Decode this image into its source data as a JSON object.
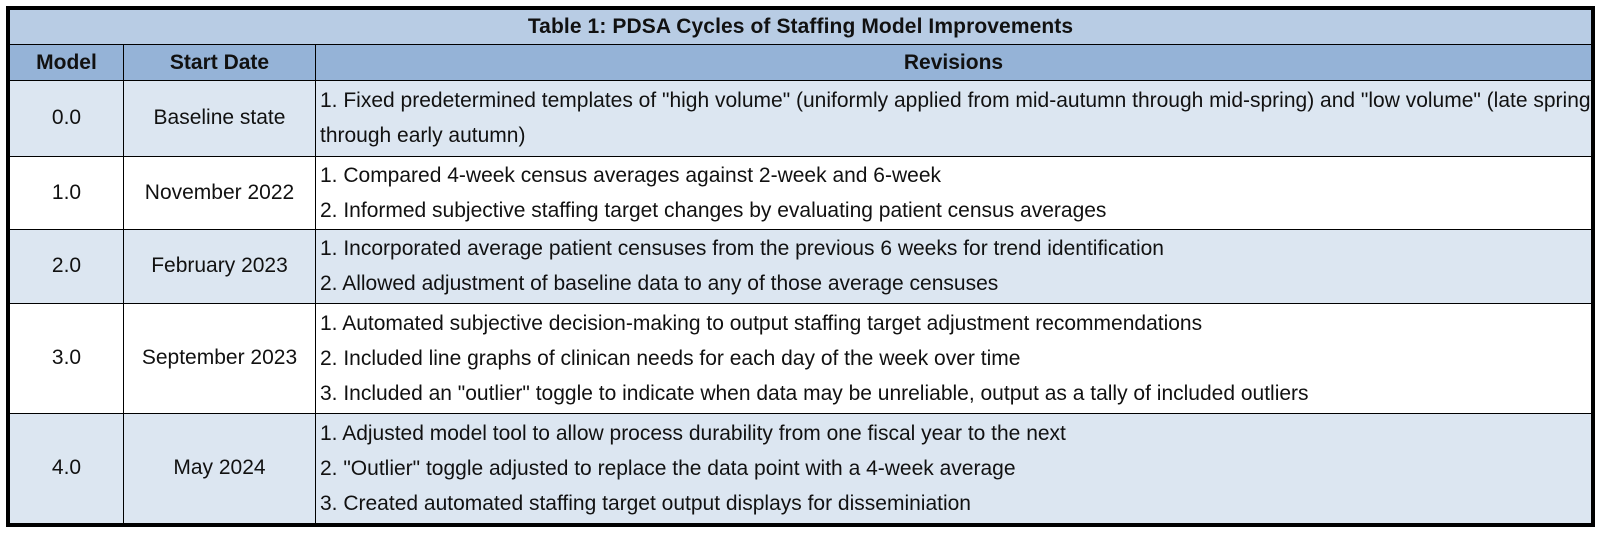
{
  "table": {
    "title": "Table 1: PDSA Cycles of Staffing Model Improvements",
    "headers": {
      "model": "Model",
      "start_date": "Start Date",
      "revisions": "Revisions"
    },
    "rows": [
      {
        "model": "0.0",
        "start_date": "Baseline state",
        "revisions": [
          "1. Fixed predetermined templates of \"high volume\" (uniformly applied from mid-autumn through mid-spring) and \"low volume\" (late spring through early autumn)"
        ]
      },
      {
        "model": "1.0",
        "start_date": "November 2022",
        "revisions": [
          "1. Compared 4-week census averages against 2-week and 6-week",
          "2. Informed subjective staffing target changes by evaluating patient census averages"
        ]
      },
      {
        "model": "2.0",
        "start_date": "February 2023",
        "revisions": [
          "1. Incorporated average patient censuses from the previous 6 weeks for trend identification",
          "2. Allowed adjustment of baseline data to any of those average censuses"
        ]
      },
      {
        "model": "3.0",
        "start_date": "September 2023",
        "revisions": [
          "1. Automated subjective decision-making to output staffing target adjustment recommendations",
          "2. Included line graphs of clinican needs for each day of the week over time",
          "3. Included an \"outlier\" toggle to indicate when data may be unreliable, output as a tally of included outliers"
        ]
      },
      {
        "model": "4.0",
        "start_date": "May 2024",
        "revisions": [
          "1. Adjusted model tool to allow process durability from one fiscal year to the next",
          "2. \"Outlier\" toggle adjusted to replace the data point with a 4-week average",
          "3. Created automated staffing target output displays for disseminiation"
        ]
      }
    ]
  }
}
